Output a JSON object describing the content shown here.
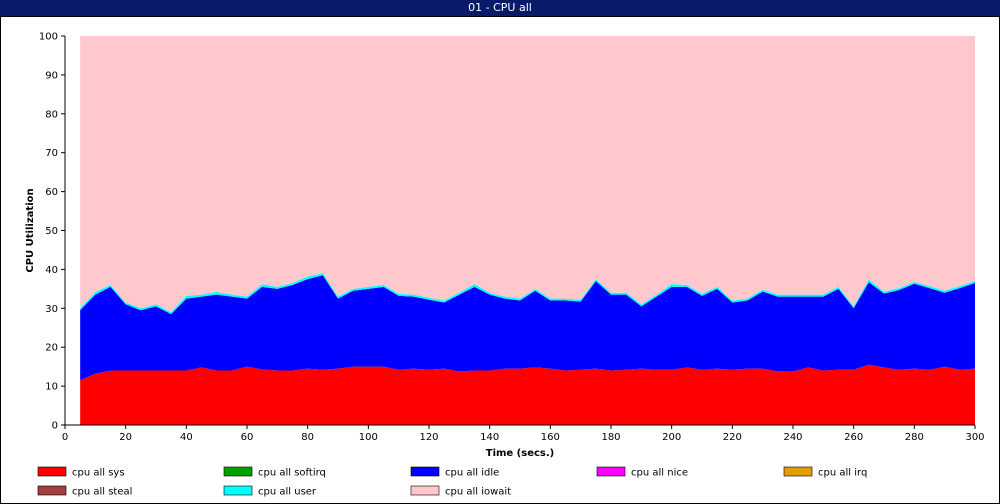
{
  "window": {
    "title": "01 - CPU all"
  },
  "chart_data": {
    "type": "area",
    "stacked": true,
    "title": "01 - CPU all",
    "xlabel": "Time (secs.)",
    "ylabel": "CPU Utilization",
    "xlim": [
      0,
      300
    ],
    "ylim": [
      0,
      100
    ],
    "xticks": [
      0,
      20,
      40,
      60,
      80,
      100,
      120,
      140,
      160,
      180,
      200,
      220,
      240,
      260,
      280,
      300
    ],
    "yticks": [
      0,
      10,
      20,
      30,
      40,
      50,
      60,
      70,
      80,
      90,
      100
    ],
    "grid": false,
    "legend_position": "bottom",
    "x": [
      5,
      10,
      15,
      20,
      25,
      30,
      35,
      40,
      45,
      50,
      55,
      60,
      65,
      70,
      75,
      80,
      85,
      90,
      95,
      100,
      105,
      110,
      115,
      120,
      125,
      130,
      135,
      140,
      145,
      150,
      155,
      160,
      165,
      170,
      175,
      180,
      185,
      190,
      195,
      200,
      205,
      210,
      215,
      220,
      225,
      230,
      235,
      240,
      245,
      250,
      255,
      260,
      265,
      270,
      275,
      280,
      285,
      290,
      295,
      300
    ],
    "series": [
      {
        "name": "cpu all sys",
        "color": "#ff0000",
        "values": [
          11.5,
          13.2,
          14.0,
          14.0,
          14.0,
          14.0,
          14.0,
          14.0,
          14.8,
          14.0,
          14.0,
          15.0,
          14.3,
          14.0,
          14.0,
          14.5,
          14.2,
          14.5,
          15.0,
          15.0,
          15.0,
          14.2,
          14.5,
          14.2,
          14.5,
          13.8,
          14.0,
          14.0,
          14.5,
          14.5,
          14.8,
          14.5,
          14.0,
          14.2,
          14.5,
          14.0,
          14.2,
          14.5,
          14.2,
          14.2,
          14.8,
          14.2,
          14.5,
          14.2,
          14.5,
          14.5,
          13.8,
          13.8,
          14.8,
          14.0,
          14.2,
          14.2,
          15.5,
          14.8,
          14.2,
          14.5,
          14.2,
          15.0,
          14.2,
          14.5
        ]
      },
      {
        "name": "cpu all softirq",
        "color": "#00a000",
        "values": [
          0,
          0,
          0,
          0,
          0,
          0,
          0,
          0,
          0,
          0,
          0,
          0,
          0,
          0,
          0,
          0,
          0,
          0,
          0,
          0,
          0,
          0,
          0,
          0,
          0,
          0,
          0,
          0,
          0,
          0,
          0,
          0,
          0,
          0,
          0,
          0,
          0,
          0,
          0,
          0,
          0,
          0,
          0,
          0,
          0,
          0,
          0,
          0,
          0,
          0,
          0,
          0,
          0,
          0,
          0,
          0,
          0,
          0,
          0,
          0
        ]
      },
      {
        "name": "cpu all idle",
        "color": "#0000ff",
        "values": [
          18.0,
          20.3,
          21.5,
          17.0,
          15.5,
          16.5,
          14.5,
          18.5,
          18.2,
          19.5,
          19.0,
          17.5,
          21.2,
          21.0,
          22.0,
          23.0,
          24.3,
          18.0,
          19.5,
          20.0,
          20.5,
          19.0,
          18.5,
          18.0,
          17.0,
          19.7,
          21.5,
          19.5,
          18.0,
          17.5,
          19.7,
          17.5,
          18.0,
          17.5,
          22.5,
          19.5,
          19.3,
          16.0,
          18.8,
          21.3,
          20.7,
          19.0,
          20.5,
          17.3,
          17.5,
          19.8,
          19.2,
          19.2,
          18.2,
          19.0,
          20.8,
          15.8,
          21.2,
          19.0,
          20.5,
          21.8,
          21.0,
          19.0,
          21.0,
          22.0
        ]
      },
      {
        "name": "cpu all nice",
        "color": "#ff00ff",
        "values": [
          0,
          0,
          0,
          0,
          0,
          0,
          0,
          0,
          0,
          0,
          0,
          0,
          0,
          0,
          0,
          0,
          0,
          0,
          0,
          0,
          0,
          0,
          0,
          0,
          0,
          0,
          0,
          0,
          0,
          0,
          0,
          0,
          0,
          0,
          0,
          0,
          0,
          0,
          0,
          0,
          0,
          0,
          0,
          0,
          0,
          0,
          0,
          0,
          0,
          0,
          0,
          0,
          0,
          0,
          0,
          0,
          0,
          0,
          0,
          0
        ]
      },
      {
        "name": "cpu all irq",
        "color": "#e0a000",
        "values": [
          0,
          0,
          0,
          0,
          0,
          0,
          0,
          0,
          0,
          0,
          0,
          0,
          0,
          0,
          0,
          0,
          0,
          0,
          0,
          0,
          0,
          0,
          0,
          0,
          0,
          0,
          0,
          0,
          0,
          0,
          0,
          0,
          0,
          0,
          0,
          0,
          0,
          0,
          0,
          0,
          0,
          0,
          0,
          0,
          0,
          0,
          0,
          0,
          0,
          0,
          0,
          0,
          0,
          0,
          0,
          0,
          0,
          0,
          0,
          0
        ]
      },
      {
        "name": "cpu all steal",
        "color": "#a04040",
        "values": [
          0,
          0,
          0,
          0,
          0,
          0,
          0,
          0,
          0,
          0,
          0,
          0,
          0,
          0,
          0,
          0,
          0,
          0,
          0,
          0,
          0,
          0,
          0,
          0,
          0,
          0,
          0,
          0,
          0,
          0,
          0,
          0,
          0,
          0,
          0,
          0,
          0,
          0,
          0,
          0,
          0,
          0,
          0,
          0,
          0,
          0,
          0,
          0,
          0,
          0,
          0,
          0,
          0,
          0,
          0,
          0,
          0,
          0,
          0,
          0
        ]
      },
      {
        "name": "cpu all user",
        "color": "#00ffff",
        "values": [
          0.5,
          0.7,
          0.5,
          0.5,
          0.5,
          0.5,
          0.5,
          0.7,
          0.5,
          0.7,
          0.5,
          0.5,
          0.7,
          0.5,
          0.5,
          0.7,
          0.5,
          0.5,
          0.5,
          0.5,
          0.5,
          0.5,
          0.5,
          0.5,
          0.5,
          0.5,
          0.7,
          0.5,
          0.5,
          0.5,
          0.5,
          0.5,
          0.5,
          0.5,
          0.5,
          0.5,
          0.5,
          0.5,
          0.5,
          0.7,
          0.5,
          0.5,
          0.5,
          0.5,
          0.5,
          0.5,
          0.5,
          0.5,
          0.5,
          0.5,
          0.5,
          0.5,
          0.7,
          0.5,
          0.5,
          0.5,
          0.5,
          0.5,
          0.5,
          0.5
        ]
      },
      {
        "name": "cpu all iowait",
        "color": "#ffc8cc",
        "values": [
          70.0,
          65.8,
          64.0,
          68.5,
          70.0,
          69.0,
          71.0,
          66.8,
          66.5,
          65.8,
          66.5,
          67.0,
          63.8,
          64.5,
          63.5,
          61.8,
          61.0,
          67.0,
          65.0,
          64.5,
          64.0,
          66.3,
          66.5,
          67.3,
          68.0,
          66.0,
          63.8,
          66.0,
          67.0,
          67.5,
          65.0,
          67.5,
          67.5,
          67.8,
          62.5,
          66.0,
          66.0,
          69.0,
          66.5,
          63.8,
          64.0,
          66.3,
          64.5,
          68.0,
          67.5,
          65.2,
          66.5,
          66.5,
          66.5,
          66.5,
          64.5,
          69.5,
          62.6,
          65.7,
          64.8,
          63.2,
          64.3,
          65.5,
          64.3,
          63.0
        ]
      }
    ]
  }
}
